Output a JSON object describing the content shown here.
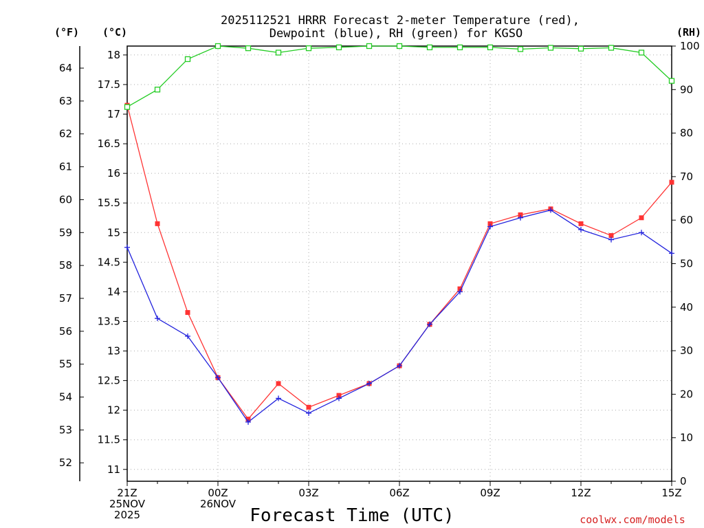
{
  "chart_data": {
    "type": "line",
    "title_line1": "2025112521 HRRR Forecast 2-meter Temperature (red),",
    "title_line2": "Dewpoint (blue), RH (green) for KGSO",
    "xlabel": "Forecast Time (UTC)",
    "credit": "coolwx.com/models",
    "left_outer_unit": "(°F)",
    "left_inner_unit": "(°C)",
    "right_unit": "(RH)",
    "ylim_c": [
      10.8,
      18.15
    ],
    "ylim_rh": [
      0,
      100
    ],
    "y_ticks_c": [
      "11",
      "11.5",
      "12",
      "12.5",
      "13",
      "13.5",
      "14",
      "14.5",
      "15",
      "15.5",
      "16",
      "16.5",
      "17",
      "17.5",
      "18"
    ],
    "y_ticks_f": [
      "52",
      "53",
      "54",
      "55",
      "56",
      "57",
      "58",
      "59",
      "60",
      "61",
      "62",
      "63",
      "64"
    ],
    "y_ticks_rh": [
      "0",
      "10",
      "20",
      "30",
      "40",
      "50",
      "60",
      "70",
      "80",
      "90",
      "100"
    ],
    "x_range_hours": [
      0,
      18
    ],
    "x_ticks": [
      {
        "hour": 0,
        "lines": [
          "21Z",
          "25NOV",
          "2025"
        ]
      },
      {
        "hour": 3,
        "lines": [
          "00Z",
          "26NOV"
        ]
      },
      {
        "hour": 6,
        "lines": [
          "03Z"
        ]
      },
      {
        "hour": 9,
        "lines": [
          "06Z"
        ]
      },
      {
        "hour": 12,
        "lines": [
          "09Z"
        ]
      },
      {
        "hour": 15,
        "lines": [
          "12Z"
        ]
      },
      {
        "hour": 18,
        "lines": [
          "15Z"
        ]
      }
    ],
    "hours": [
      0,
      1,
      2,
      3,
      4,
      5,
      6,
      7,
      8,
      9,
      10,
      11,
      12,
      13,
      14,
      15,
      16,
      17,
      18
    ],
    "series": [
      {
        "name": "Temperature",
        "color": "#ff3333",
        "values": [
          17.15,
          15.15,
          13.65,
          12.55,
          11.85,
          12.45,
          12.05,
          12.25,
          12.45,
          12.75,
          13.45,
          14.05,
          15.15,
          15.3,
          15.4,
          15.15,
          14.95,
          15.25,
          15.85
        ]
      },
      {
        "name": "Dewpoint",
        "color": "#2222dd",
        "values": [
          14.75,
          13.55,
          13.25,
          12.55,
          11.8,
          12.2,
          11.95,
          12.2,
          12.45,
          12.75,
          13.45,
          14.0,
          15.1,
          15.25,
          15.38,
          15.05,
          14.88,
          15.0,
          14.65
        ]
      },
      {
        "name": "RH",
        "color": "#22cc22",
        "values": [
          86,
          90,
          97,
          100,
          99.5,
          98.5,
          99.5,
          99.7,
          100,
          100,
          99.7,
          99.7,
          99.7,
          99.3,
          99.6,
          99.4,
          99.6,
          98.5,
          92
        ]
      }
    ]
  }
}
